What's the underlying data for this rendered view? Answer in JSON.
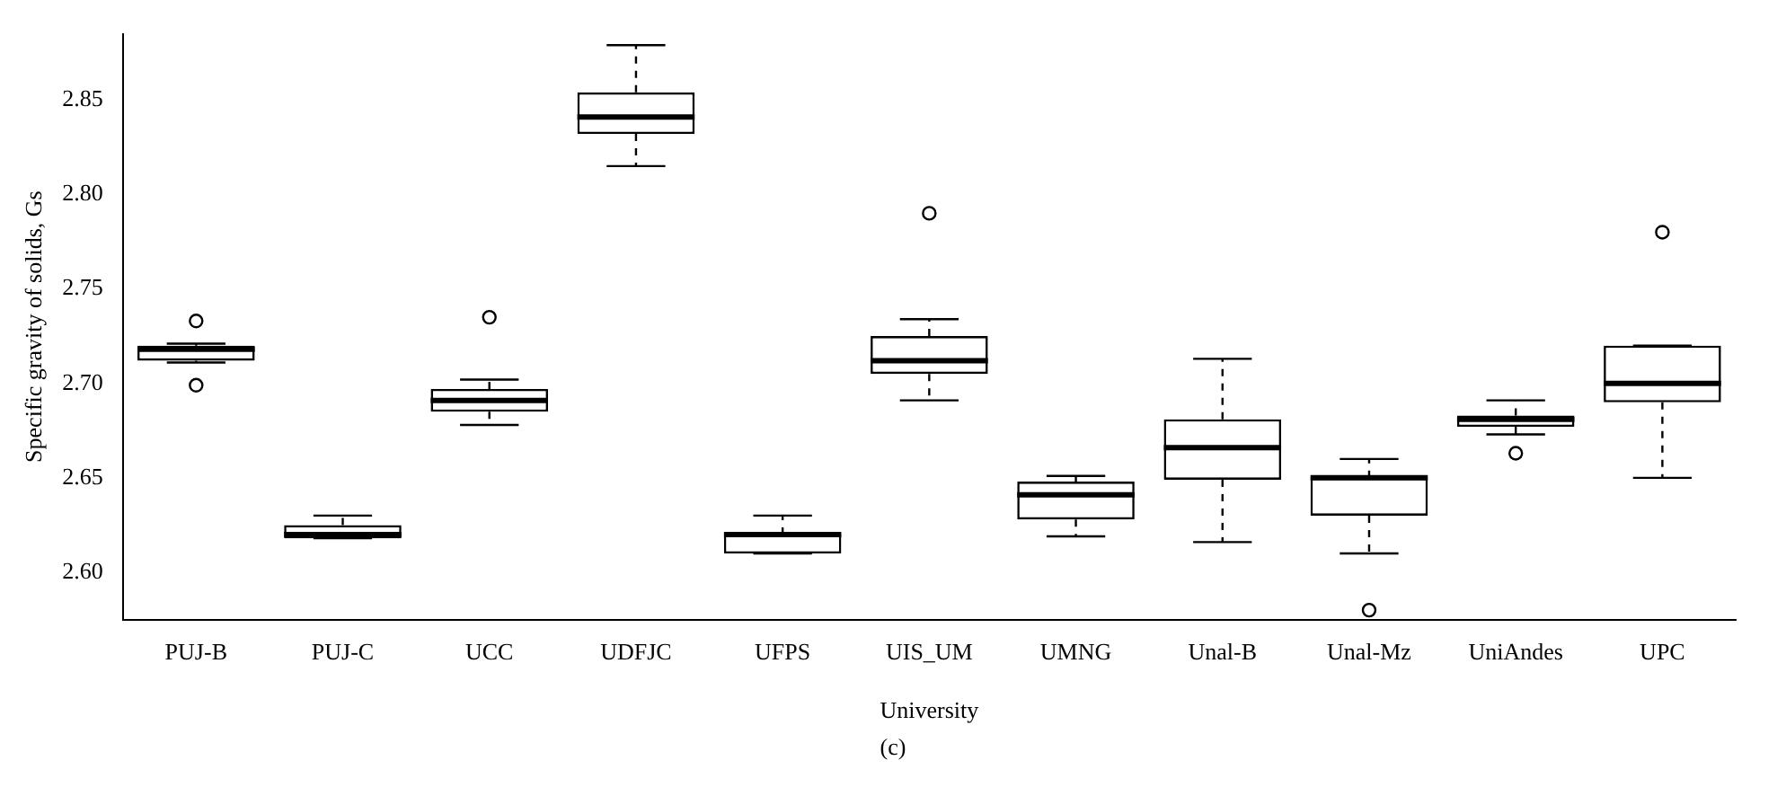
{
  "chart_data": {
    "type": "box",
    "xlabel": "University",
    "ylabel": "Specific gravity of solids, Gs",
    "annotations": [
      "(c)"
    ],
    "categories": [
      "PUJ-B",
      "PUJ-C",
      "UCC",
      "UDFJC",
      "UFPS",
      "UIS_UM",
      "UMNG",
      "Unal-B",
      "Unal-Mz",
      "UniAndes",
      "UPC"
    ],
    "boxes": [
      {
        "low": 2.711,
        "q1": 2.712,
        "median": 2.718,
        "q3": 2.72,
        "high": 2.721,
        "outliers": [
          2.733,
          2.699
        ]
      },
      {
        "low": 2.618,
        "q1": 2.618,
        "median": 2.62,
        "q3": 2.625,
        "high": 2.63
      },
      {
        "low": 2.678,
        "q1": 2.685,
        "median": 2.691,
        "q3": 2.697,
        "high": 2.702,
        "outliers": [
          2.735
        ]
      },
      {
        "low": 2.815,
        "q1": 2.832,
        "median": 2.841,
        "q3": 2.854,
        "high": 2.879
      },
      {
        "low": 2.61,
        "q1": 2.61,
        "median": 2.62,
        "q3": 2.62,
        "high": 2.63
      },
      {
        "low": 2.691,
        "q1": 2.705,
        "median": 2.712,
        "q3": 2.725,
        "high": 2.734,
        "outliers": [
          2.79
        ]
      },
      {
        "low": 2.619,
        "q1": 2.628,
        "median": 2.641,
        "q3": 2.648,
        "high": 2.651
      },
      {
        "low": 2.616,
        "q1": 2.649,
        "median": 2.666,
        "q3": 2.681,
        "high": 2.713
      },
      {
        "low": 2.61,
        "q1": 2.63,
        "median": 2.65,
        "q3": 2.65,
        "high": 2.66,
        "outliers": [
          2.58
        ]
      },
      {
        "low": 2.673,
        "q1": 2.677,
        "median": 2.681,
        "q3": 2.683,
        "high": 2.691,
        "outliers": [
          2.663
        ]
      },
      {
        "low": 2.65,
        "q1": 2.69,
        "median": 2.7,
        "q3": 2.72,
        "high": 2.72,
        "outliers": [
          2.78
        ]
      }
    ],
    "ylim": [
      2.575,
      2.885
    ],
    "yticks": [
      {
        "value": 2.6,
        "label": "2.60"
      },
      2.65,
      {
        "value": 2.7,
        "label": "2.70"
      },
      2.75,
      {
        "value": 2.8,
        "label": "2.80"
      },
      2.85
    ],
    "grid": false,
    "legend": false,
    "marker": "circle"
  }
}
